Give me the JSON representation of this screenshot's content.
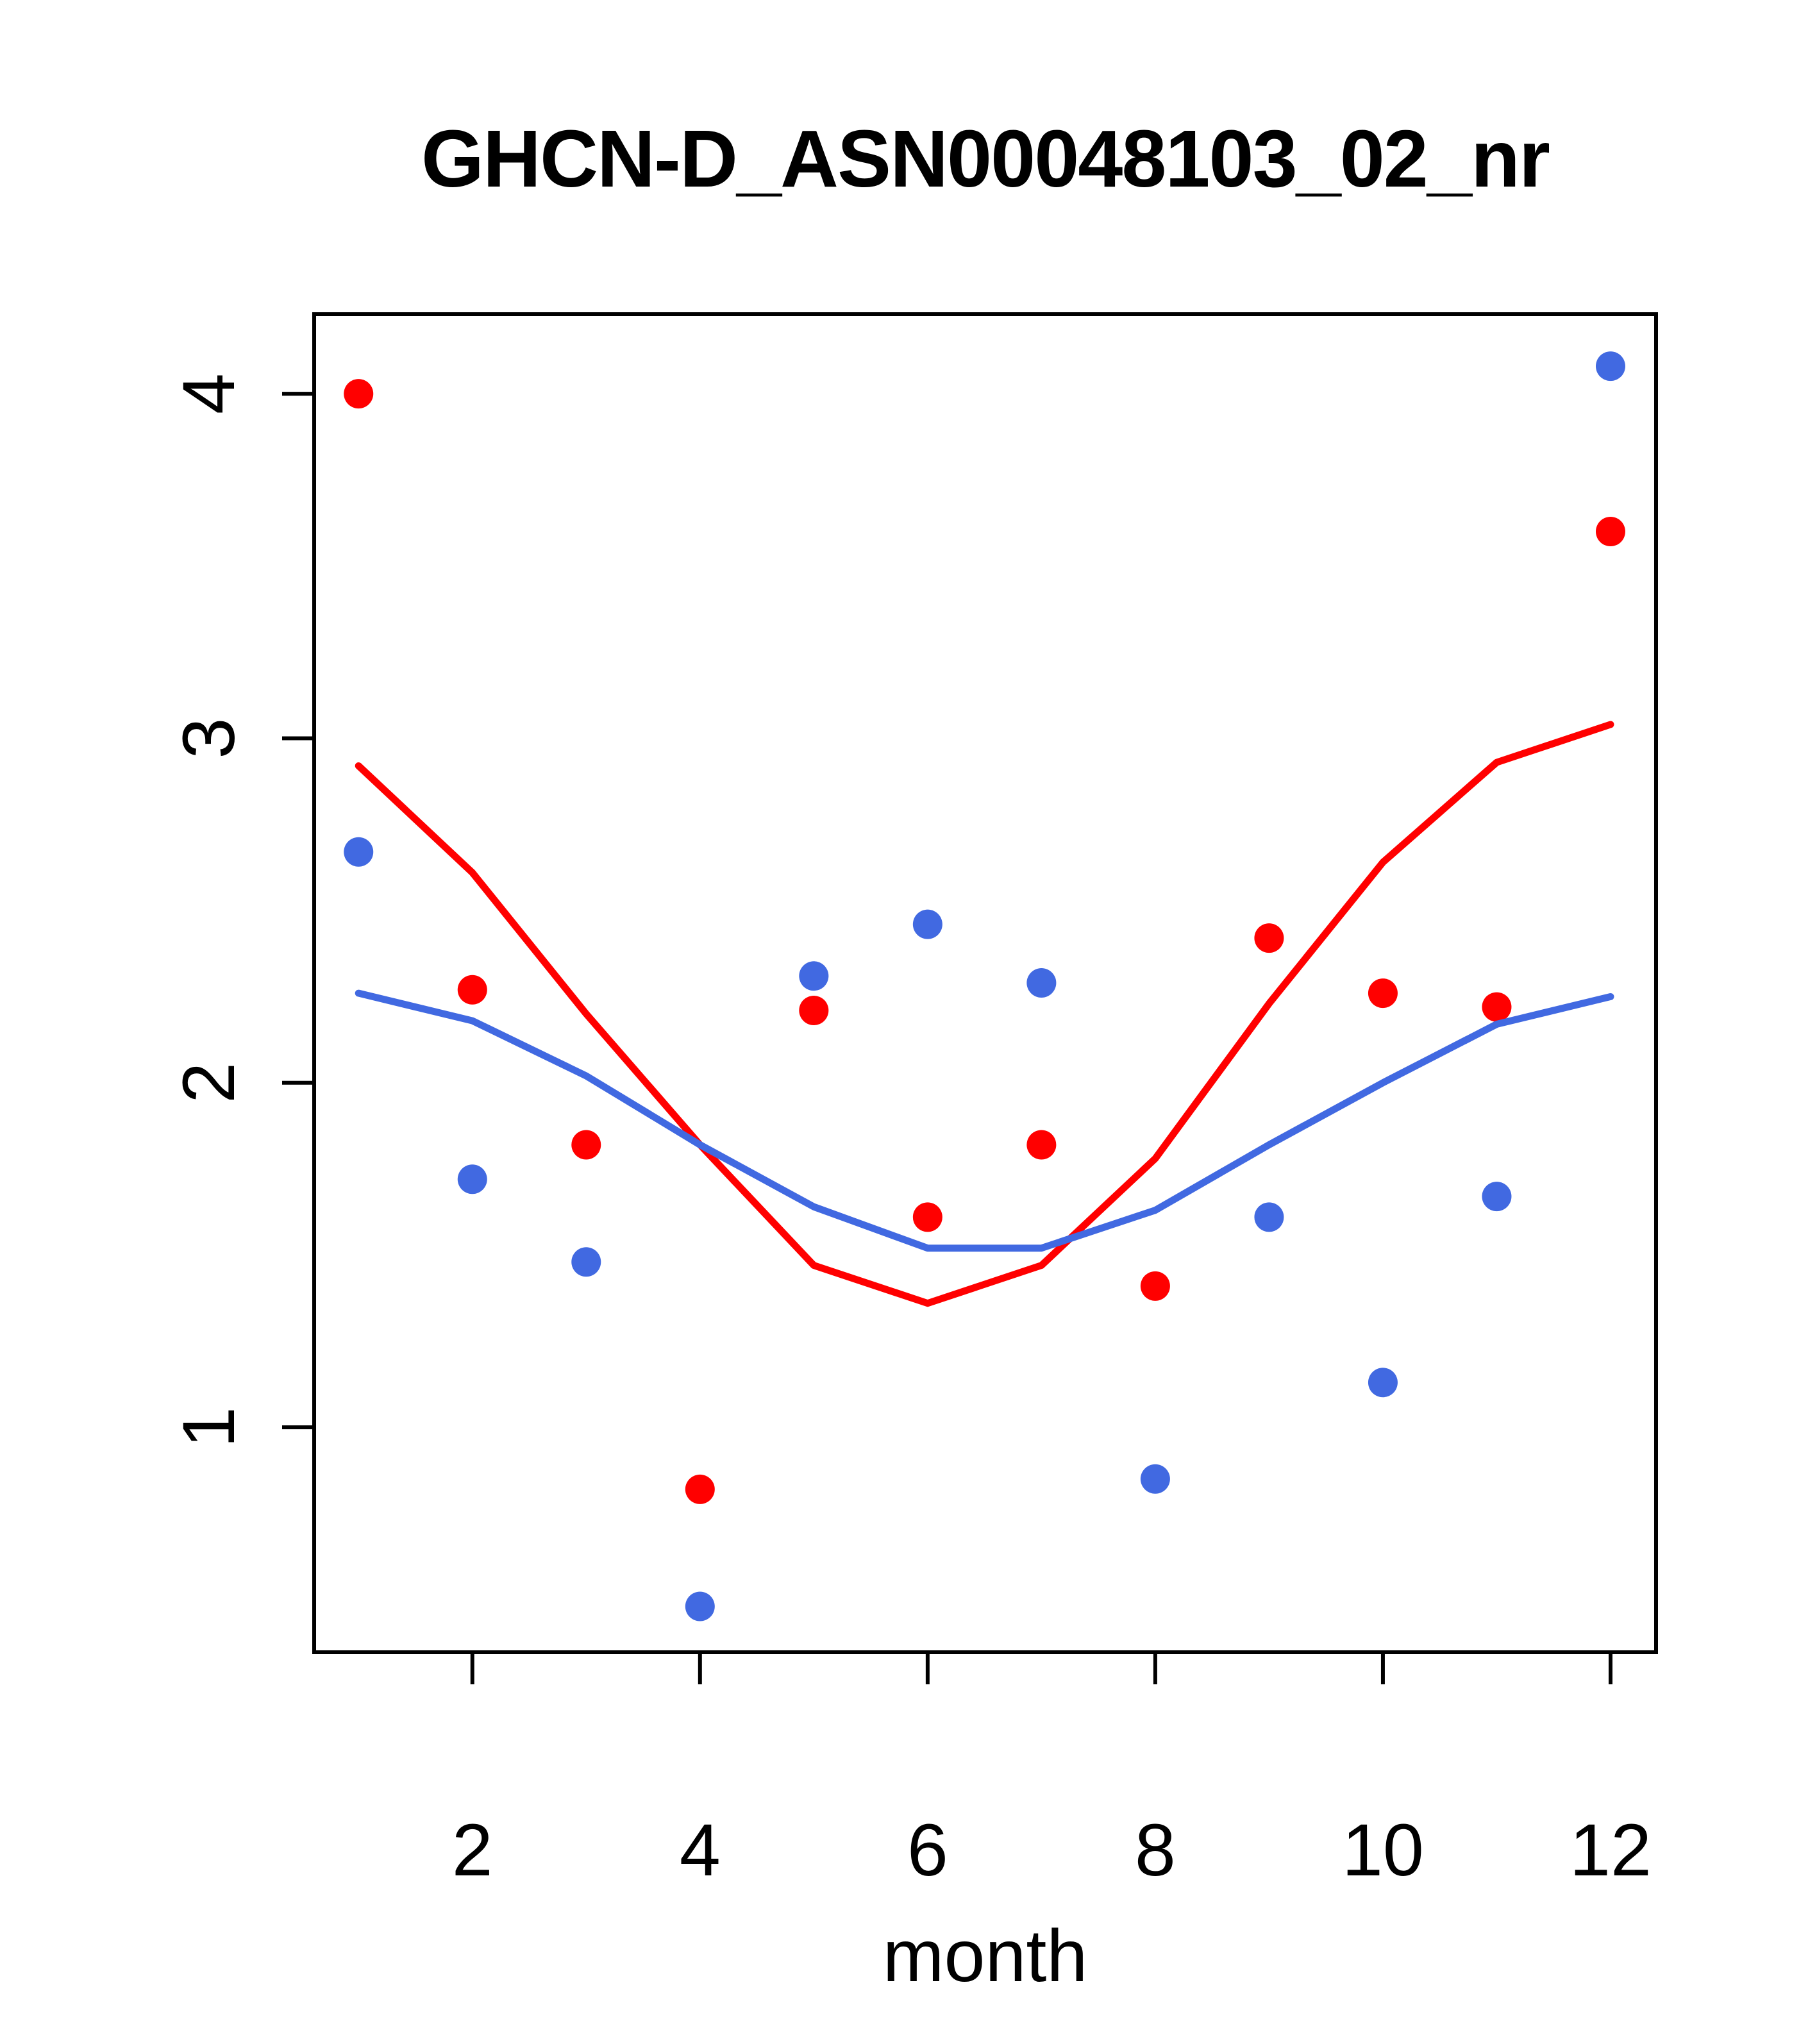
{
  "title": "GHCN-D_ASN00048103_02_nr",
  "colors": {
    "series_red": "#FF0000",
    "series_blue": "#4169E1",
    "axis": "#000000",
    "background": "#FFFFFF"
  },
  "chart_data": {
    "type": "scatter",
    "title": "GHCN-D_ASN00048103_02_nr",
    "xlabel": "month",
    "ylabel": "",
    "grid": false,
    "legend_position": "none",
    "xlim": [
      0.61,
      12.4
    ],
    "ylim": [
      0.347,
      4.231
    ],
    "x_ticks": [
      2,
      4,
      6,
      8,
      10,
      12
    ],
    "y_ticks": [
      1,
      2,
      3,
      4
    ],
    "x": [
      1,
      2,
      3,
      4,
      5,
      6,
      7,
      8,
      9,
      10,
      11,
      12
    ],
    "series": [
      {
        "name": "red points (monthly values)",
        "kind": "points",
        "color": "#FF0000",
        "values": [
          4.0,
          2.27,
          1.82,
          0.82,
          2.21,
          1.61,
          1.82,
          1.41,
          2.42,
          2.26,
          2.22,
          3.6
        ]
      },
      {
        "name": "blue points (monthly values)",
        "kind": "points",
        "color": "#4169E1",
        "values": [
          2.67,
          1.72,
          1.48,
          0.48,
          2.31,
          2.46,
          2.29,
          0.85,
          1.61,
          1.13,
          1.67,
          4.08
        ]
      },
      {
        "name": "red smoothed line",
        "kind": "line",
        "color": "#FF0000",
        "values": [
          2.92,
          2.61,
          2.2,
          1.82,
          1.47,
          1.36,
          1.47,
          1.78,
          2.23,
          2.64,
          2.93,
          3.04
        ]
      },
      {
        "name": "blue smoothed line",
        "kind": "line",
        "color": "#4169E1",
        "values": [
          2.26,
          2.18,
          2.02,
          1.82,
          1.64,
          1.52,
          1.52,
          1.63,
          1.82,
          2.0,
          2.17,
          2.25
        ]
      }
    ]
  }
}
